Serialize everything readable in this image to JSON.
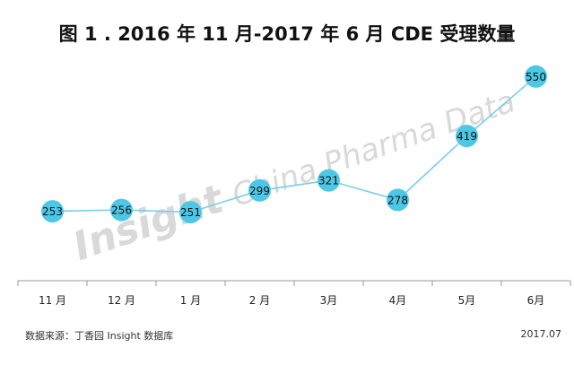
{
  "chart_data": {
    "type": "line",
    "title": "图 1 . 2016 年 11 月-2017 年 6 月 CDE 受理数量",
    "categories": [
      "11 月",
      "12 月",
      "1 月",
      "2 月",
      "3月",
      "4月",
      "5月",
      "6月"
    ],
    "values": [
      253,
      256,
      251,
      299,
      321,
      278,
      419,
      550
    ],
    "ylim": [
      100,
      600
    ],
    "grid": false,
    "legend": "none",
    "line_color": "#7ad0e5",
    "marker_color": "#4dc7e6"
  },
  "watermark": {
    "strong": "Insight",
    "light": "China Pharma Data"
  },
  "footer": {
    "source": "数据来源：丁香园 Insight 数据库",
    "date": "2017.07"
  }
}
